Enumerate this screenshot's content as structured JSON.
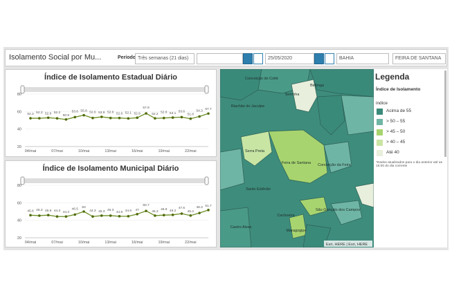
{
  "header": {
    "title": "Isolamento Social por Mu...",
    "period_label": "Período",
    "period": "Três semanas (21 dias)",
    "end_date": "25/05/2020",
    "state": "BAHIA",
    "city": "FEIRA DE SANTANA"
  },
  "chart_data": [
    {
      "type": "line",
      "title": "Índice de Isolamento Estadual Diário",
      "color": "#6b8e23",
      "marker_color": "#4f6b0a",
      "categories": [
        "04/mai",
        null,
        null,
        "07/mai",
        null,
        null,
        "10/mai",
        null,
        null,
        "13/mai",
        null,
        null,
        "16/mai",
        null,
        null,
        "19/mai",
        null,
        null,
        "22/mai",
        null,
        null
      ],
      "values": [
        52.3,
        52.3,
        52.9,
        52.2,
        50.9,
        53.6,
        55.8,
        52.6,
        53.9,
        52.6,
        52.6,
        52.1,
        52.9,
        57.9,
        52.2,
        52.6,
        53.1,
        53.6,
        51.8,
        54.3,
        57.7
      ],
      "ylim": [
        20,
        80
      ],
      "yticks": [
        20,
        40,
        60,
        80
      ]
    },
    {
      "type": "line",
      "title": "Índice de Isolamento Municipal Diário",
      "color": "#6b8e23",
      "marker_color": "#4f6b0a",
      "categories": [
        "04/mai",
        null,
        null,
        "07/mai",
        null,
        null,
        "10/mai",
        null,
        null,
        "13/mai",
        null,
        null,
        "16/mai",
        null,
        null,
        "19/mai",
        null,
        null,
        "22/mai",
        null,
        null
      ],
      "values": [
        45.8,
        45.3,
        45.9,
        44.3,
        44.3,
        46.5,
        50,
        44.3,
        45.3,
        45.3,
        44.6,
        44.6,
        47,
        50.7,
        45.3,
        45.9,
        46.2,
        47.6,
        45.4,
        48.3,
        51.7
      ],
      "ylim": [
        20,
        80
      ],
      "yticks": [
        20,
        40,
        60,
        80
      ]
    }
  ],
  "map": {
    "labels": [
      "Conceição do Coité",
      "Serrinha",
      "Biritinga",
      "Riachão do Jacuípe",
      "Serra Preta",
      "Feira de Santana",
      "Conceição da Feira",
      "Santo Estêvão",
      "Castro Alves",
      "Cachoeira",
      "São Gonçalo dos Campos",
      "Maragogipe"
    ],
    "attribution": "Esri, HERE | Esri, HERE"
  },
  "legend": {
    "title": "Legenda",
    "subtitle": "Índice de Isolamento",
    "field": "indice",
    "classes": [
      {
        "label": "Acima de 55",
        "color": "#3a8a7a"
      },
      {
        "label": "> 50 – 55",
        "color": "#6fb5a5"
      },
      {
        "label": "> 45 – 50",
        "color": "#a8d46f"
      },
      {
        "label": "> 40 – 45",
        "color": "#c9e5a4"
      },
      {
        "label": "Até 40",
        "color": "#e8efdc"
      }
    ],
    "note": "*Dados atualizados para o dia anterior até as 15:00 do dia corrente"
  }
}
